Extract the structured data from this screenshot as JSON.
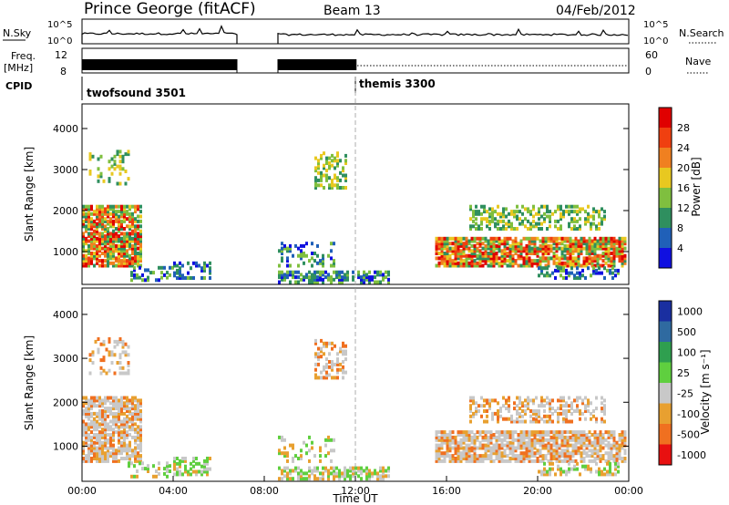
{
  "header": {
    "station": "Prince George (fitACF)",
    "beam": "Beam 13",
    "date": "04/Feb/2012"
  },
  "strip": {
    "nsky_label": "N.Sky",
    "nsky_ticks": [
      "10^5",
      "10^0"
    ],
    "nsearch_label": "N.Search",
    "nsearch_ticks": [
      "10^5",
      "10^0"
    ],
    "freq_label_1": "Freq.",
    "freq_label_2": "[MHz]",
    "freq_ticks": [
      "12",
      "8"
    ],
    "nave_label": "Nave",
    "nave_ticks": [
      "60",
      "0"
    ],
    "cpid_label": "CPID",
    "cpid_modes": [
      {
        "name": "twofsound 3501",
        "start_hour": 0
      },
      {
        "name": "themis 3300",
        "start_hour": 12
      }
    ]
  },
  "chart_data": [
    {
      "type": "heatmap",
      "name": "power",
      "ylabel": "Slant Range [km]",
      "yticks": [
        "1000",
        "2000",
        "3000",
        "4000"
      ],
      "ylim": [
        200,
        4600
      ],
      "xlim": [
        0,
        24
      ],
      "colorbar_label": "Power [dB]",
      "colorbar_ticks": [
        "4",
        "8",
        "12",
        "16",
        "20",
        "24",
        "28"
      ],
      "colors": [
        "#1010e0",
        "#2060b8",
        "#2f8f5f",
        "#7fbf3f",
        "#e8c820",
        "#f08020",
        "#f04010",
        "#e00000"
      ]
    },
    {
      "type": "heatmap",
      "name": "velocity",
      "ylabel": "Slant Range [km]",
      "yticks": [
        "1000",
        "2000",
        "3000",
        "4000"
      ],
      "ylim": [
        200,
        4600
      ],
      "xlim": [
        0,
        24
      ],
      "colorbar_label": "Velocity [m s⁻¹]",
      "colorbar_ticks": [
        "1000",
        "500",
        "100",
        "25",
        "-25",
        "-100",
        "-500",
        "-1000"
      ],
      "colors": [
        "#1a2fa0",
        "#2f6aa0",
        "#2f9f4f",
        "#5fcf3f",
        "#c8c8c8",
        "#e8a030",
        "#f07020",
        "#e81010"
      ]
    }
  ],
  "xaxis": {
    "ticks": [
      "00:00",
      "04:00",
      "08:00",
      "12:00",
      "16:00",
      "20:00",
      "00:00"
    ],
    "label": "Time UT"
  },
  "data_gap_hours": [
    6.8,
    8.6
  ]
}
